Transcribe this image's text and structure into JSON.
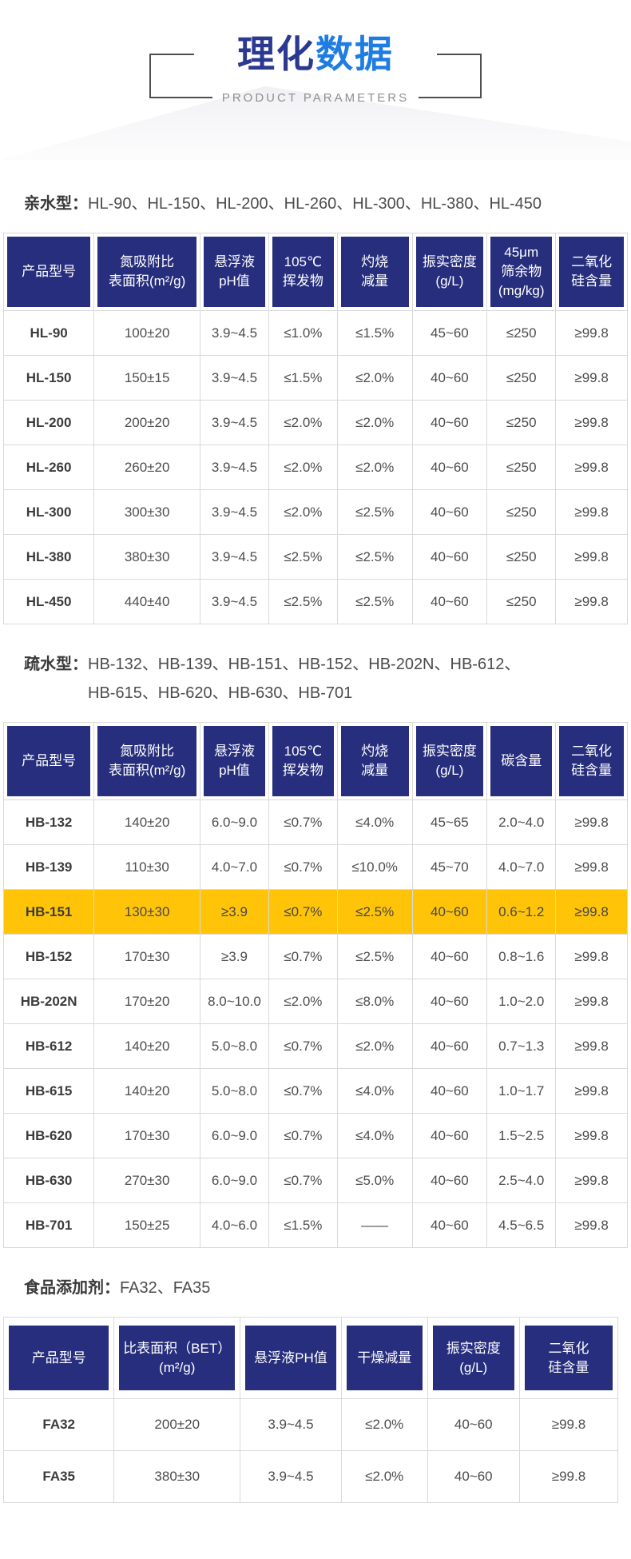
{
  "header": {
    "title_primary": "理化",
    "title_accent": "数据",
    "subtitle": "PRODUCT PARAMETERS"
  },
  "colors": {
    "navy_header": "#272e7d",
    "accent_blue": "#1e7ce2",
    "title_dark_blue": "#2b3990",
    "highlight_yellow": "#ffc408",
    "border_gray": "#d9d9d9",
    "body_text_gray": "#4d4d4d"
  },
  "sections": [
    {
      "id": "hydrophilic",
      "label": "亲水型：",
      "models": "HL-90、HL-150、HL-200、HL-260、HL-300、HL-380、HL-450",
      "columns": [
        "产品型号",
        "氮吸附比\n表面积(m²/g)",
        "悬浮液\npH值",
        "105℃\n挥发物",
        "灼烧\n减量",
        "振实密度\n(g/L)",
        "45μm\n筛余物\n(mg/kg)",
        "二氧化\n硅含量"
      ],
      "col_widths": [
        "14.5%",
        "17%",
        "11%",
        "11%",
        "12%",
        "12%",
        "11%",
        "11.5%"
      ],
      "rows": [
        {
          "model": "HL-90",
          "values": [
            "100±20",
            "3.9~4.5",
            "≤1.0%",
            "≤1.5%",
            "45~60",
            "≤250",
            "≥99.8"
          ],
          "highlight": false
        },
        {
          "model": "HL-150",
          "values": [
            "150±15",
            "3.9~4.5",
            "≤1.5%",
            "≤2.0%",
            "40~60",
            "≤250",
            "≥99.8"
          ],
          "highlight": false
        },
        {
          "model": "HL-200",
          "values": [
            "200±20",
            "3.9~4.5",
            "≤2.0%",
            "≤2.0%",
            "40~60",
            "≤250",
            "≥99.8"
          ],
          "highlight": false
        },
        {
          "model": "HL-260",
          "values": [
            "260±20",
            "3.9~4.5",
            "≤2.0%",
            "≤2.0%",
            "40~60",
            "≤250",
            "≥99.8"
          ],
          "highlight": false
        },
        {
          "model": "HL-300",
          "values": [
            "300±30",
            "3.9~4.5",
            "≤2.0%",
            "≤2.5%",
            "40~60",
            "≤250",
            "≥99.8"
          ],
          "highlight": false
        },
        {
          "model": "HL-380",
          "values": [
            "380±30",
            "3.9~4.5",
            "≤2.5%",
            "≤2.5%",
            "40~60",
            "≤250",
            "≥99.8"
          ],
          "highlight": false
        },
        {
          "model": "HL-450",
          "values": [
            "440±40",
            "3.9~4.5",
            "≤2.5%",
            "≤2.5%",
            "40~60",
            "≤250",
            "≥99.8"
          ],
          "highlight": false
        }
      ]
    },
    {
      "id": "hydrophobic",
      "label": "疏水型：",
      "models": "HB-132、HB-139、HB-151、HB-152、HB-202N、HB-612、\nHB-615、HB-620、HB-630、HB-701",
      "columns": [
        "产品型号",
        "氮吸附比\n表面积(m²/g)",
        "悬浮液\npH值",
        "105℃\n挥发物",
        "灼烧\n减量",
        "振实密度\n(g/L)",
        "碳含量",
        "二氧化\n硅含量"
      ],
      "col_widths": [
        "14.5%",
        "17%",
        "11%",
        "11%",
        "12%",
        "12%",
        "11%",
        "11.5%"
      ],
      "rows": [
        {
          "model": "HB-132",
          "values": [
            "140±20",
            "6.0~9.0",
            "≤0.7%",
            "≤4.0%",
            "45~65",
            "2.0~4.0",
            "≥99.8"
          ],
          "highlight": false
        },
        {
          "model": "HB-139",
          "values": [
            "110±30",
            "4.0~7.0",
            "≤0.7%",
            "≤10.0%",
            "45~70",
            "4.0~7.0",
            "≥99.8"
          ],
          "highlight": false
        },
        {
          "model": "HB-151",
          "values": [
            "130±30",
            "≥3.9",
            "≤0.7%",
            "≤2.5%",
            "40~60",
            "0.6~1.2",
            "≥99.8"
          ],
          "highlight": true
        },
        {
          "model": "HB-152",
          "values": [
            "170±30",
            "≥3.9",
            "≤0.7%",
            "≤2.5%",
            "40~60",
            "0.8~1.6",
            "≥99.8"
          ],
          "highlight": false
        },
        {
          "model": "HB-202N",
          "values": [
            "170±20",
            "8.0~10.0",
            "≤2.0%",
            "≤8.0%",
            "40~60",
            "1.0~2.0",
            "≥99.8"
          ],
          "highlight": false
        },
        {
          "model": "HB-612",
          "values": [
            "140±20",
            "5.0~8.0",
            "≤0.7%",
            "≤2.0%",
            "40~60",
            "0.7~1.3",
            "≥99.8"
          ],
          "highlight": false
        },
        {
          "model": "HB-615",
          "values": [
            "140±20",
            "5.0~8.0",
            "≤0.7%",
            "≤4.0%",
            "40~60",
            "1.0~1.7",
            "≥99.8"
          ],
          "highlight": false
        },
        {
          "model": "HB-620",
          "values": [
            "170±30",
            "6.0~9.0",
            "≤0.7%",
            "≤4.0%",
            "40~60",
            "1.5~2.5",
            "≥99.8"
          ],
          "highlight": false
        },
        {
          "model": "HB-630",
          "values": [
            "270±30",
            "6.0~9.0",
            "≤0.7%",
            "≤5.0%",
            "40~60",
            "2.5~4.0",
            "≥99.8"
          ],
          "highlight": false
        },
        {
          "model": "HB-701",
          "values": [
            "150±25",
            "4.0~6.0",
            "≤1.5%",
            "——",
            "40~60",
            "4.5~6.5",
            "≥99.8"
          ],
          "highlight": false
        }
      ]
    },
    {
      "id": "food-additive",
      "label": "食品添加剂：",
      "models": "FA32、FA35",
      "columns": [
        "产品型号",
        "比表面积（BET）\n(m²/g)",
        "悬浮液PH值",
        "干燥减量",
        "振实密度\n(g/L)",
        "二氧化\n硅含量"
      ],
      "col_widths": [
        "18%",
        "20.5%",
        "16.5%",
        "14%",
        "15%",
        "16%"
      ],
      "rows": [
        {
          "model": "FA32",
          "values": [
            "200±20",
            "3.9~4.5",
            "≤2.0%",
            "40~60",
            "≥99.8"
          ],
          "highlight": false
        },
        {
          "model": "FA35",
          "values": [
            "380±30",
            "3.9~4.5",
            "≤2.0%",
            "40~60",
            "≥99.8"
          ],
          "highlight": false
        }
      ]
    }
  ]
}
